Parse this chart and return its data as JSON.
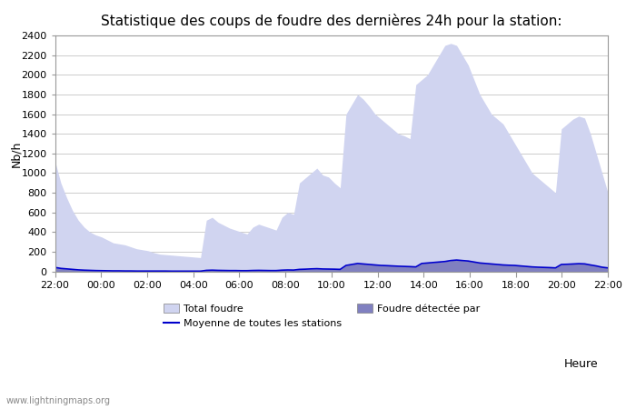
{
  "title": "Statistique des coups de foudre des dernières 24h pour la station:",
  "xlabel": "Heure",
  "ylabel": "Nb/h",
  "ylim": [
    0,
    2400
  ],
  "yticks": [
    0,
    200,
    400,
    600,
    800,
    1000,
    1200,
    1400,
    1600,
    1800,
    2000,
    2200,
    2400
  ],
  "xtick_labels": [
    "22:00",
    "00:00",
    "02:00",
    "04:00",
    "06:00",
    "08:00",
    "10:00",
    "12:00",
    "14:00",
    "16:00",
    "18:00",
    "20:00",
    "22:00"
  ],
  "x_values": [
    0,
    1,
    2,
    3,
    4,
    5,
    6,
    7,
    8,
    9,
    10,
    11,
    12,
    13,
    14,
    15,
    16,
    17,
    18,
    19,
    20,
    21,
    22,
    23,
    24,
    25,
    26,
    27,
    28,
    29,
    30,
    31,
    32,
    33,
    34,
    35,
    36,
    37,
    38,
    39,
    40,
    41,
    42,
    43,
    44,
    45,
    46,
    47,
    48,
    49,
    50,
    51,
    52,
    53,
    54,
    55,
    56,
    57,
    58,
    59,
    60,
    61,
    62,
    63,
    64,
    65,
    66,
    67,
    68,
    69,
    70,
    71,
    72,
    73,
    74,
    75,
    76,
    77,
    78,
    79,
    80,
    81,
    82,
    83,
    84,
    85,
    86,
    87,
    88,
    89,
    90,
    91,
    92,
    93,
    94,
    95
  ],
  "total_foudre": [
    1120,
    900,
    750,
    620,
    520,
    450,
    400,
    370,
    350,
    320,
    290,
    280,
    270,
    250,
    230,
    220,
    210,
    190,
    175,
    170,
    165,
    160,
    155,
    150,
    145,
    140,
    520,
    550,
    500,
    470,
    440,
    420,
    400,
    380,
    450,
    480,
    460,
    440,
    420,
    550,
    600,
    580,
    900,
    950,
    1000,
    1050,
    980,
    960,
    900,
    850,
    1600,
    1700,
    1800,
    1750,
    1680,
    1600,
    1550,
    1500,
    1450,
    1400,
    1380,
    1350,
    1900,
    1950,
    2000,
    2100,
    2200,
    2300,
    2320,
    2300,
    2200,
    2100,
    1950,
    1800,
    1700,
    1600,
    1550,
    1500,
    1400,
    1300,
    1200,
    1100,
    1000,
    950,
    900,
    850,
    800,
    1450,
    1500,
    1550,
    1580,
    1560,
    1400,
    1200,
    1000,
    800
  ],
  "detected_foudre": [
    40,
    30,
    25,
    20,
    15,
    12,
    10,
    8,
    7,
    6,
    5,
    5,
    4,
    4,
    3,
    3,
    3,
    3,
    3,
    3,
    2,
    2,
    2,
    2,
    2,
    2,
    10,
    12,
    10,
    9,
    8,
    8,
    7,
    7,
    9,
    10,
    9,
    8,
    8,
    12,
    14,
    13,
    20,
    22,
    25,
    27,
    24,
    23,
    22,
    20,
    60,
    70,
    80,
    75,
    70,
    65,
    60,
    58,
    55,
    52,
    50,
    48,
    45,
    80,
    85,
    90,
    95,
    100,
    110,
    115,
    110,
    105,
    95,
    85,
    80,
    75,
    70,
    65,
    62,
    60,
    55,
    50,
    45,
    42,
    40,
    38,
    35,
    70,
    72,
    75,
    78,
    76,
    65,
    55,
    42,
    35
  ],
  "mean_line": [
    40,
    30,
    25,
    20,
    15,
    12,
    10,
    8,
    7,
    6,
    5,
    5,
    4,
    4,
    3,
    3,
    3,
    3,
    3,
    3,
    2,
    2,
    2,
    2,
    2,
    2,
    10,
    12,
    10,
    9,
    8,
    8,
    7,
    7,
    9,
    10,
    9,
    8,
    8,
    12,
    14,
    13,
    20,
    22,
    25,
    27,
    24,
    23,
    22,
    20,
    60,
    70,
    80,
    75,
    70,
    65,
    60,
    58,
    55,
    52,
    50,
    48,
    45,
    80,
    85,
    90,
    95,
    100,
    110,
    115,
    110,
    105,
    95,
    85,
    80,
    75,
    70,
    65,
    62,
    60,
    55,
    50,
    45,
    42,
    40,
    38,
    35,
    70,
    72,
    75,
    78,
    76,
    65,
    55,
    42,
    35
  ],
  "color_total": "#d0d4f0",
  "color_detected": "#8080c0",
  "color_mean_line": "#0000cc",
  "bg_color": "#ffffff",
  "watermark": "www.lightningmaps.org"
}
